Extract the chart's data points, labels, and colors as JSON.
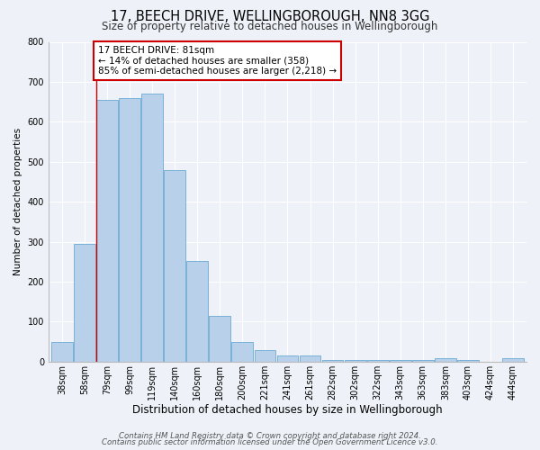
{
  "title": "17, BEECH DRIVE, WELLINGBOROUGH, NN8 3GG",
  "subtitle": "Size of property relative to detached houses in Wellingborough",
  "xlabel": "Distribution of detached houses by size in Wellingborough",
  "ylabel": "Number of detached properties",
  "bar_labels": [
    "38sqm",
    "58sqm",
    "79sqm",
    "99sqm",
    "119sqm",
    "140sqm",
    "160sqm",
    "180sqm",
    "200sqm",
    "221sqm",
    "241sqm",
    "261sqm",
    "282sqm",
    "302sqm",
    "322sqm",
    "343sqm",
    "363sqm",
    "383sqm",
    "403sqm",
    "424sqm",
    "444sqm"
  ],
  "bar_values": [
    50,
    295,
    655,
    660,
    670,
    480,
    252,
    115,
    50,
    28,
    15,
    15,
    4,
    4,
    4,
    4,
    4,
    8,
    4,
    0,
    8
  ],
  "bar_color": "#b8d0ea",
  "bar_edge_color": "#6aaad4",
  "vline_index": 2,
  "vline_color": "#cc0000",
  "annotation_text": "17 BEECH DRIVE: 81sqm\n← 14% of detached houses are smaller (358)\n85% of semi-detached houses are larger (2,218) →",
  "annotation_box_facecolor": "#ffffff",
  "annotation_box_edgecolor": "#cc0000",
  "ylim": [
    0,
    800
  ],
  "yticks": [
    0,
    100,
    200,
    300,
    400,
    500,
    600,
    700,
    800
  ],
  "footer_line1": "Contains HM Land Registry data © Crown copyright and database right 2024.",
  "footer_line2": "Contains public sector information licensed under the Open Government Licence v3.0.",
  "bg_color": "#eef2f8",
  "plot_bg_color": "#eef2f8",
  "title_fontsize": 10.5,
  "subtitle_fontsize": 8.5,
  "xlabel_fontsize": 8.5,
  "ylabel_fontsize": 7.5,
  "tick_fontsize": 7,
  "annotation_fontsize": 7.5,
  "footer_fontsize": 6.2
}
